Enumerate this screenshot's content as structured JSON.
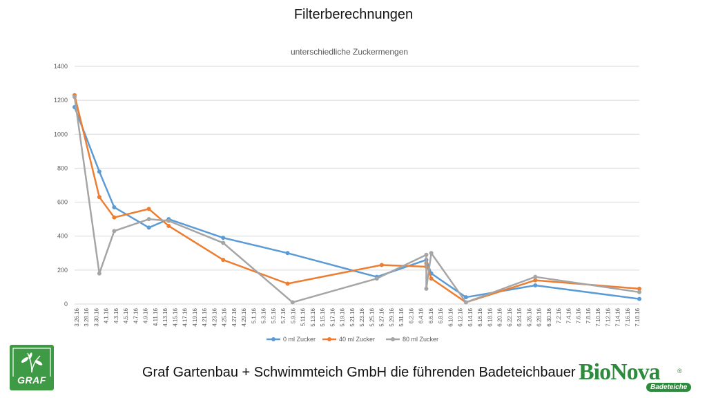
{
  "slide": {
    "title": "Filterberechnungen",
    "footer": "Graf Gartenbau + Schwimmteich GmbH die führenden Badeteichbauer"
  },
  "logos": {
    "graf": "GRAF",
    "bionova": "BioNova",
    "bionova_registered": "®",
    "bionova_tagline": "Badeteiche"
  },
  "colors": {
    "series_0": "#5b9bd5",
    "series_1": "#ed7d31",
    "series_2": "#a5a5a5",
    "grid": "#d9d9d9",
    "brand_green": "#2e8b3d"
  },
  "chart_data": {
    "type": "line",
    "title": "unterschiedliche Zuckermengen",
    "xlabel": "",
    "ylabel": "",
    "ylim": [
      0,
      1400
    ],
    "yticks": [
      0,
      200,
      400,
      600,
      800,
      1000,
      1200,
      1400
    ],
    "grid": true,
    "legend_position": "bottom",
    "x_tick_labels": [
      "3.26.16",
      "3.28.16",
      "3.30.16",
      "4.1.16",
      "4.3.16",
      "4.5.16",
      "4.7.16",
      "4.9.16",
      "4.11.16",
      "4.13.16",
      "4.15.16",
      "4.17.16",
      "4.19.16",
      "4.21.16",
      "4.23.16",
      "4.25.16",
      "4.27.16",
      "4.29.16",
      "5.1.16",
      "5.3.16",
      "5.5.16",
      "5.7.16",
      "5.9.16",
      "5.11.16",
      "5.13.16",
      "5.15.16",
      "5.17.16",
      "5.19.16",
      "5.21.16",
      "5.23.16",
      "5.25.16",
      "5.27.16",
      "5.29.16",
      "5.31.16",
      "6.2.16",
      "6.4.16",
      "6.6.16",
      "6.8.16",
      "6.10.16",
      "6.12.16",
      "6.14.16",
      "6.16.16",
      "6.18.16",
      "6.20.16",
      "6.22.16",
      "6.24.16",
      "6.26.16",
      "6.28.16",
      "6.30.16",
      "7.2.16",
      "7.4.16",
      "7.6.16",
      "7.8.16",
      "7.10.16",
      "7.12.16",
      "7.14.16",
      "7.16.16",
      "7.18.16"
    ],
    "series": [
      {
        "name": "0 ml Zucker",
        "points": [
          {
            "x": "2016-03-26",
            "y": 1160
          },
          {
            "x": "2016-03-31",
            "y": 780
          },
          {
            "x": "2016-04-03",
            "y": 570
          },
          {
            "x": "2016-04-10",
            "y": 450
          },
          {
            "x": "2016-04-14",
            "y": 500
          },
          {
            "x": "2016-04-25",
            "y": 390
          },
          {
            "x": "2016-05-08",
            "y": 300
          },
          {
            "x": "2016-05-26",
            "y": 160
          },
          {
            "x": "2016-06-05",
            "y": 260
          },
          {
            "x": "2016-06-06",
            "y": 180
          },
          {
            "x": "2016-06-13",
            "y": 40
          },
          {
            "x": "2016-06-27",
            "y": 110
          },
          {
            "x": "2016-07-18",
            "y": 30
          }
        ]
      },
      {
        "name": "40 ml Zucker",
        "points": [
          {
            "x": "2016-03-26",
            "y": 1230
          },
          {
            "x": "2016-03-31",
            "y": 630
          },
          {
            "x": "2016-04-03",
            "y": 510
          },
          {
            "x": "2016-04-10",
            "y": 560
          },
          {
            "x": "2016-04-14",
            "y": 460
          },
          {
            "x": "2016-04-25",
            "y": 260
          },
          {
            "x": "2016-05-08",
            "y": 120
          },
          {
            "x": "2016-05-27",
            "y": 230
          },
          {
            "x": "2016-06-05",
            "y": 220
          },
          {
            "x": "2016-06-05",
            "y": 240
          },
          {
            "x": "2016-06-06",
            "y": 150
          },
          {
            "x": "2016-06-13",
            "y": 10
          },
          {
            "x": "2016-06-27",
            "y": 140
          },
          {
            "x": "2016-07-18",
            "y": 90
          }
        ]
      },
      {
        "name": "80 ml Zucker",
        "points": [
          {
            "x": "2016-03-26",
            "y": 1220
          },
          {
            "x": "2016-03-31",
            "y": 180
          },
          {
            "x": "2016-04-03",
            "y": 430
          },
          {
            "x": "2016-04-10",
            "y": 500
          },
          {
            "x": "2016-04-14",
            "y": 490
          },
          {
            "x": "2016-04-25",
            "y": 360
          },
          {
            "x": "2016-05-09",
            "y": 10
          },
          {
            "x": "2016-05-26",
            "y": 150
          },
          {
            "x": "2016-06-05",
            "y": 290
          },
          {
            "x": "2016-06-05",
            "y": 90
          },
          {
            "x": "2016-06-06",
            "y": 300
          },
          {
            "x": "2016-06-13",
            "y": 10
          },
          {
            "x": "2016-06-27",
            "y": 160
          },
          {
            "x": "2016-07-18",
            "y": 70
          }
        ]
      }
    ]
  }
}
